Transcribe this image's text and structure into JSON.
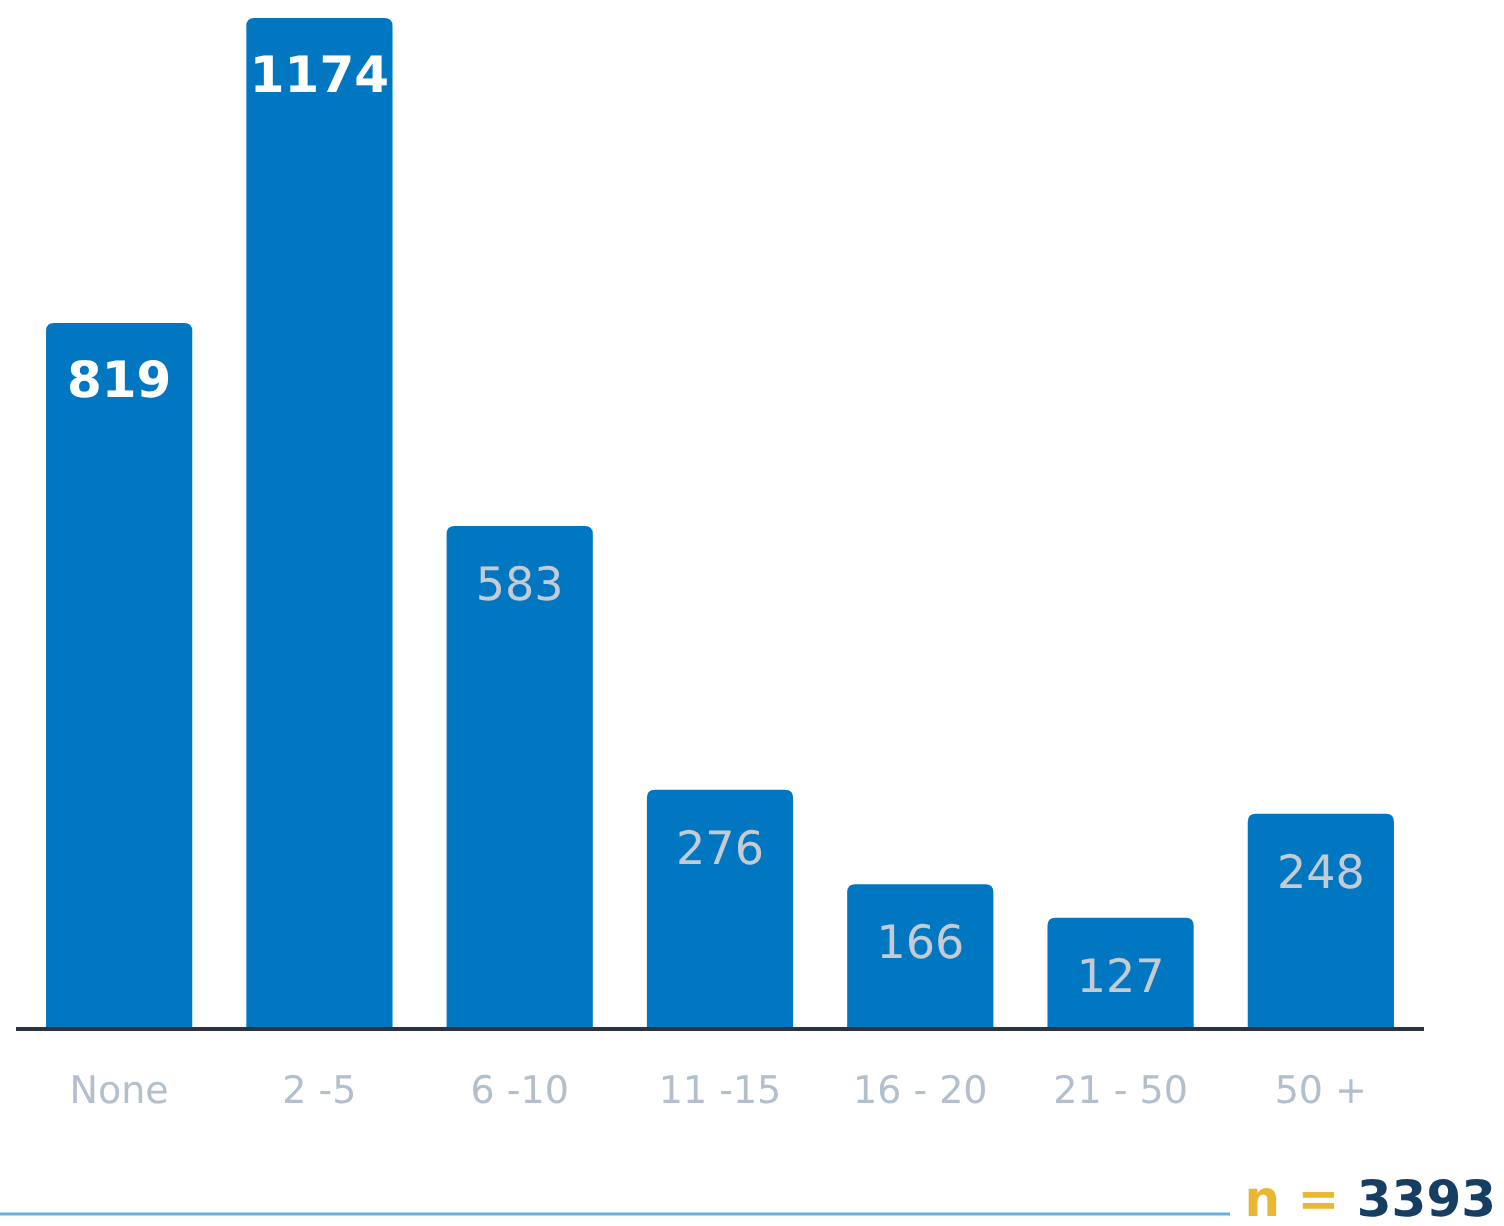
{
  "chart_data": {
    "type": "bar",
    "categories": [
      "None",
      "2 -5",
      "6 -10",
      "11 -15",
      "16 - 20",
      "21 - 50",
      "50 +"
    ],
    "values": [
      819,
      1174,
      583,
      276,
      166,
      127,
      248
    ],
    "color": "#0077c0",
    "data_labels": true,
    "annotations": [
      "n = 3393"
    ]
  }
}
